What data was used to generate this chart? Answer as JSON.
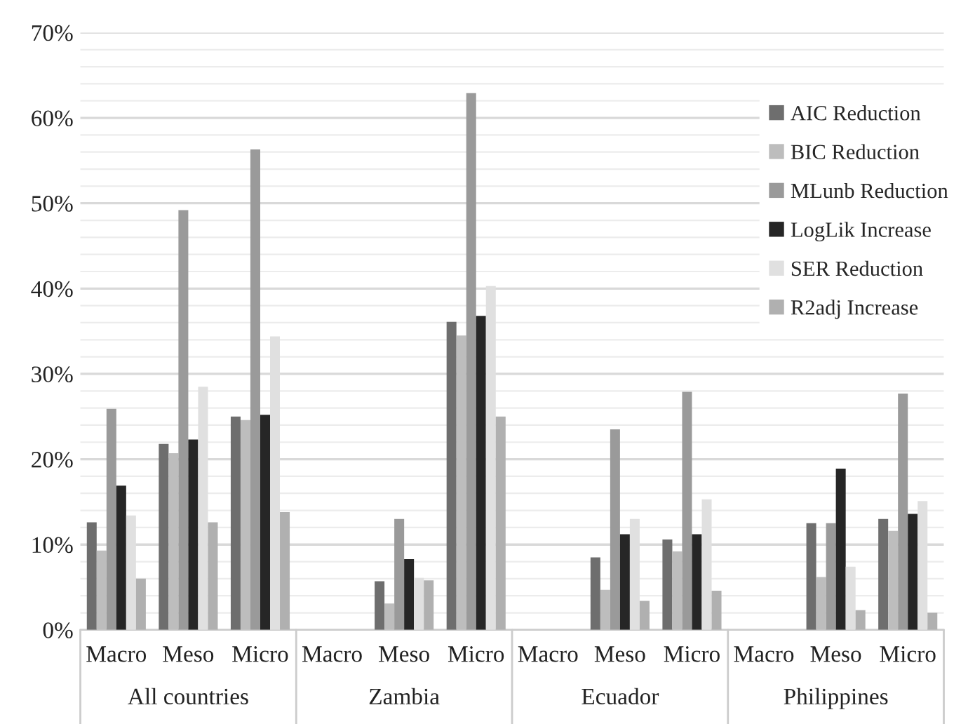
{
  "chart_data": {
    "type": "bar",
    "categories": [
      "Macro",
      "Meso",
      "Micro",
      "Macro",
      "Meso",
      "Micro",
      "Macro",
      "Meso",
      "Micro",
      "Macro",
      "Meso",
      "Micro"
    ],
    "series": [
      {
        "name": "AIC Reduction",
        "color": "#6e6e6e",
        "values": [
          12.6,
          21.8,
          25.0,
          null,
          5.7,
          36.1,
          null,
          8.5,
          10.6,
          null,
          12.5,
          13.0
        ]
      },
      {
        "name": "BIC Reduction",
        "color": "#bdbdbd",
        "values": [
          9.3,
          20.7,
          24.6,
          null,
          3.1,
          34.5,
          null,
          4.7,
          9.2,
          null,
          6.2,
          11.6
        ]
      },
      {
        "name": "MLunb Reduction",
        "color": "#9a9a9a",
        "values": [
          25.9,
          49.2,
          56.3,
          null,
          13.0,
          62.9,
          null,
          23.5,
          27.9,
          null,
          12.5,
          27.7
        ]
      },
      {
        "name": "LogLik Increase",
        "color": "#262626",
        "values": [
          16.9,
          22.3,
          25.2,
          null,
          8.3,
          36.8,
          null,
          11.2,
          11.2,
          null,
          18.9,
          13.6
        ]
      },
      {
        "name": "SER Reduction",
        "color": "#e0e0e0",
        "values": [
          13.4,
          28.5,
          34.4,
          null,
          6.1,
          40.3,
          null,
          13.0,
          15.3,
          null,
          7.4,
          15.1
        ]
      },
      {
        "name": "R2adj Increase",
        "color": "#b0b0b0",
        "values": [
          6.0,
          12.6,
          13.8,
          null,
          5.8,
          25.0,
          null,
          3.4,
          4.6,
          null,
          2.3,
          2.0
        ]
      }
    ],
    "annotations": [
      "All countries",
      "Zambia",
      "Ecuador",
      "Philippines"
    ],
    "ylim": [
      0,
      70
    ],
    "yticks": [
      {
        "value": 0,
        "label": "0%"
      },
      {
        "value": 2,
        "label": null
      },
      {
        "value": 4,
        "label": null
      },
      {
        "value": 6,
        "label": null
      },
      {
        "value": 8,
        "label": null
      },
      {
        "value": 10,
        "label": "10%"
      },
      {
        "value": 12,
        "label": null
      },
      {
        "value": 14,
        "label": null
      },
      {
        "value": 16,
        "label": null
      },
      {
        "value": 18,
        "label": null
      },
      {
        "value": 20,
        "label": "20%"
      },
      {
        "value": 22,
        "label": null
      },
      {
        "value": 24,
        "label": null
      },
      {
        "value": 26,
        "label": null
      },
      {
        "value": 28,
        "label": null
      },
      {
        "value": 30,
        "label": "30%"
      },
      {
        "value": 32,
        "label": null
      },
      {
        "value": 34,
        "label": null
      },
      {
        "value": 36,
        "label": null
      },
      {
        "value": 38,
        "label": null
      },
      {
        "value": 40,
        "label": "40%"
      },
      {
        "value": 42,
        "label": null
      },
      {
        "value": 44,
        "label": null
      },
      {
        "value": 46,
        "label": null
      },
      {
        "value": 48,
        "label": null
      },
      {
        "value": 50,
        "label": "50%"
      },
      {
        "value": 52,
        "label": null
      },
      {
        "value": 54,
        "label": null
      },
      {
        "value": 56,
        "label": null
      },
      {
        "value": 58,
        "label": null
      },
      {
        "value": 60,
        "label": "60%"
      },
      {
        "value": 62,
        "label": null
      },
      {
        "value": 64,
        "label": null
      },
      {
        "value": 66,
        "label": null
      },
      {
        "value": 68,
        "label": null
      },
      {
        "value": 70,
        "label": "70%"
      }
    ],
    "grid": "y",
    "legend": "right"
  }
}
